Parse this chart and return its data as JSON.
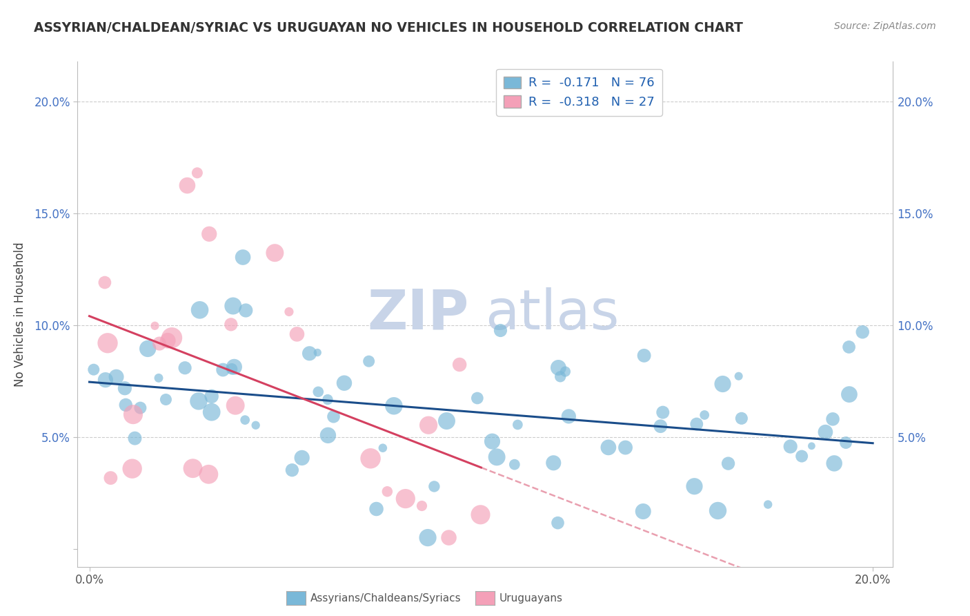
{
  "title": "ASSYRIAN/CHALDEAN/SYRIAC VS URUGUAYAN NO VEHICLES IN HOUSEHOLD CORRELATION CHART",
  "source": "Source: ZipAtlas.com",
  "ylabel": "No Vehicles in Household",
  "xlim": [
    0.0,
    0.2
  ],
  "ylim": [
    0.0,
    0.21
  ],
  "yticks": [
    0.0,
    0.05,
    0.1,
    0.15,
    0.2
  ],
  "ytick_labels": [
    "",
    "5.0%",
    "10.0%",
    "15.0%",
    "20.0%"
  ],
  "legend_r_blue": "R =  -0.171",
  "legend_n_blue": "N = 76",
  "legend_r_pink": "R =  -0.318",
  "legend_n_pink": "N = 27",
  "blue_scatter_color": "#7ab8d8",
  "pink_scatter_color": "#f4a0b8",
  "blue_line_color": "#1a4d8a",
  "pink_line_color": "#d44060",
  "title_color": "#333333",
  "source_color": "#888888",
  "tick_color": "#4472c4",
  "watermark_zip_color": "#c8d4e8",
  "watermark_atlas_color": "#c8d4e8",
  "background_color": "#ffffff",
  "grid_color": "#cccccc",
  "bottom_label_blue": "Assyrians/Chaldeans/Syriacs",
  "bottom_label_pink": "Uruguayans"
}
